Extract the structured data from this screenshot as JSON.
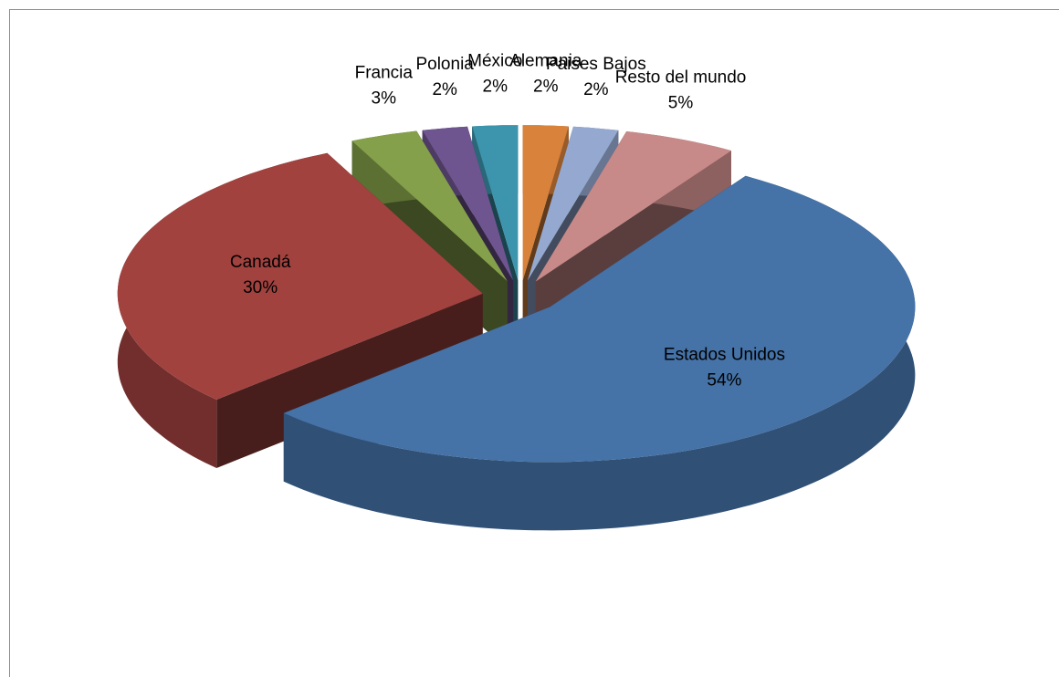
{
  "chart_data": {
    "type": "pie3d",
    "categories": [
      "Alemania",
      "Paises Bajos",
      "Resto del mundo",
      "Estados Unidos",
      "Canadá",
      "Francia",
      "Polonia",
      "México"
    ],
    "values": [
      2,
      2,
      5,
      54,
      30,
      3,
      2,
      2
    ],
    "value_labels": [
      "2%",
      "2%",
      "5%",
      "54%",
      "30%",
      "3%",
      "2%",
      "2%"
    ],
    "colors": [
      "#d9823b",
      "#95a9d0",
      "#c88a89",
      "#4572a7",
      "#a1423f",
      "#84a04a",
      "#6e558f",
      "#3c95ad"
    ],
    "exploded": true
  }
}
